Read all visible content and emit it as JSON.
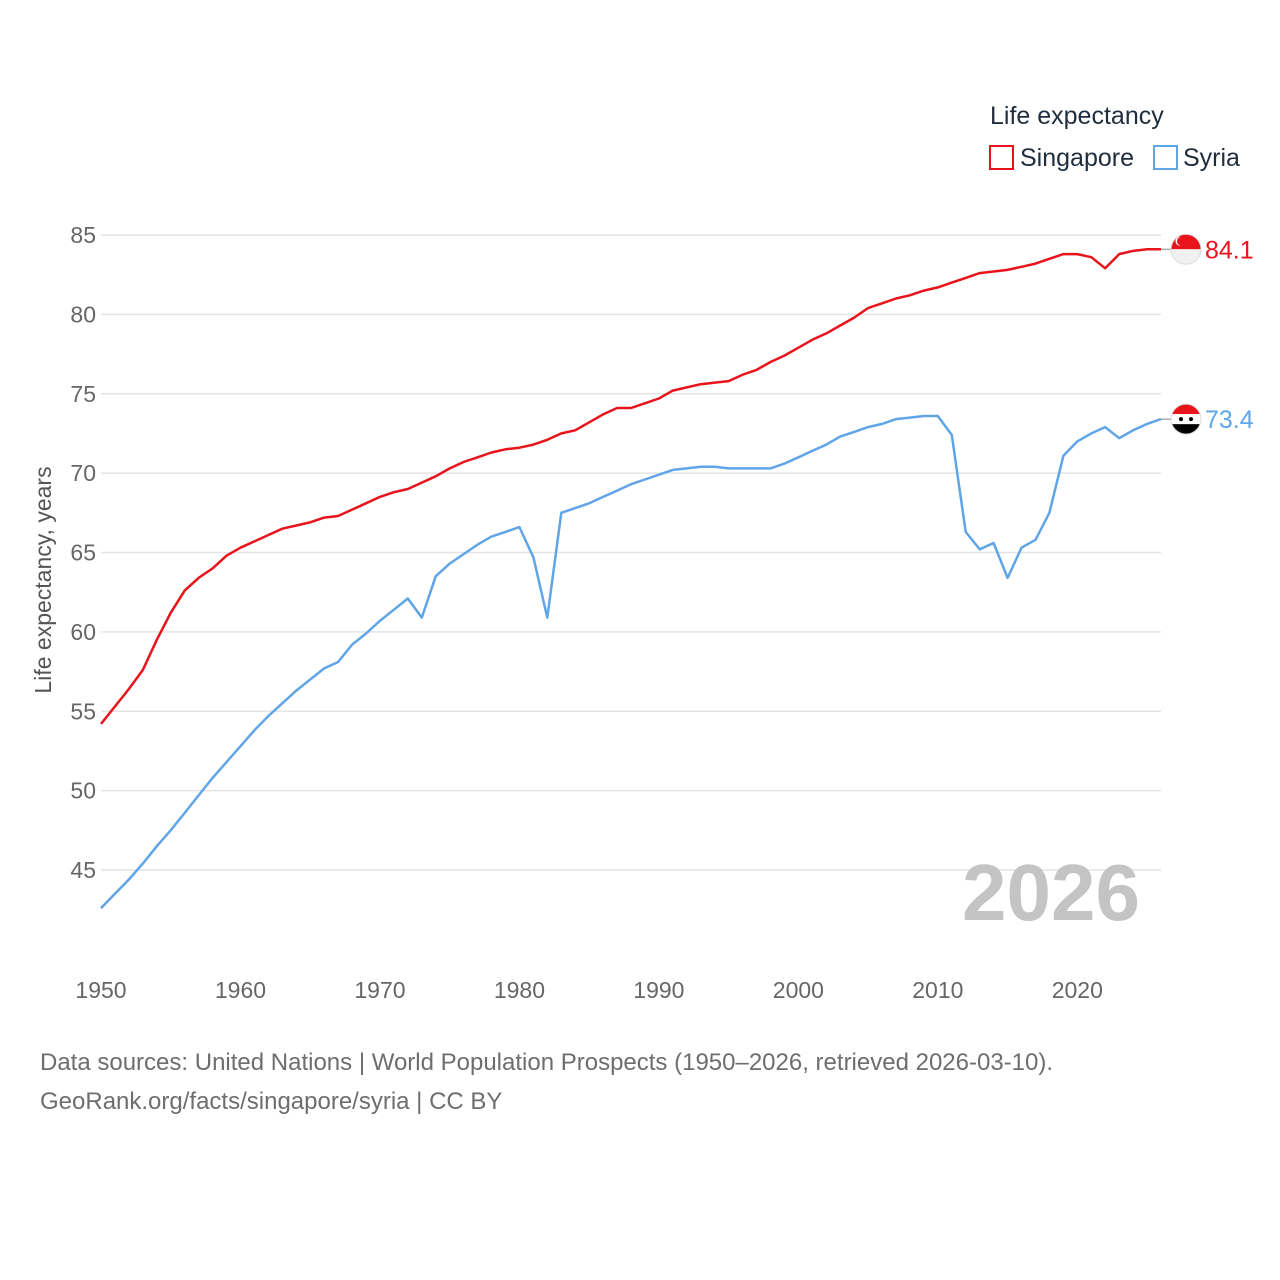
{
  "chart_data": {
    "type": "line",
    "title": "",
    "ylabel": "Life expectancy, years",
    "xlabel": "",
    "ylim": [
      41,
      87
    ],
    "xlim": [
      1950,
      2026
    ],
    "y_ticks": [
      45,
      50,
      55,
      60,
      65,
      70,
      75,
      80,
      85
    ],
    "x_ticks": [
      1950,
      1960,
      1970,
      1980,
      1990,
      2000,
      2010,
      2020
    ],
    "grid": true,
    "legend": {
      "title": "Life expectancy",
      "placement": "top-right",
      "entries": [
        "Singapore",
        "Syria"
      ]
    },
    "year_label": "2026",
    "series": [
      {
        "name": "Singapore",
        "color": "#e8131b",
        "end_label": "84.1",
        "flag": "singapore-flag",
        "x": [
          1950,
          1951,
          1952,
          1953,
          1954,
          1955,
          1956,
          1957,
          1958,
          1959,
          1960,
          1961,
          1962,
          1963,
          1964,
          1965,
          1966,
          1967,
          1968,
          1969,
          1970,
          1971,
          1972,
          1973,
          1974,
          1975,
          1976,
          1977,
          1978,
          1979,
          1980,
          1981,
          1982,
          1983,
          1984,
          1985,
          1986,
          1987,
          1988,
          1989,
          1990,
          1991,
          1992,
          1993,
          1994,
          1995,
          1996,
          1997,
          1998,
          1999,
          2000,
          2001,
          2002,
          2003,
          2004,
          2005,
          2006,
          2007,
          2008,
          2009,
          2010,
          2011,
          2012,
          2013,
          2014,
          2015,
          2016,
          2017,
          2018,
          2019,
          2020,
          2021,
          2022,
          2023,
          2024,
          2025,
          2026
        ],
        "values": [
          54.2,
          55.3,
          56.4,
          57.6,
          59.5,
          61.2,
          62.6,
          63.4,
          64.0,
          64.8,
          65.3,
          65.7,
          66.1,
          66.5,
          66.7,
          66.9,
          67.2,
          67.3,
          67.7,
          68.1,
          68.5,
          68.8,
          69.0,
          69.4,
          69.8,
          70.3,
          70.7,
          71.0,
          71.3,
          71.5,
          71.6,
          71.8,
          72.1,
          72.5,
          72.7,
          73.2,
          73.7,
          74.1,
          74.1,
          74.4,
          74.7,
          75.2,
          75.4,
          75.6,
          75.7,
          75.8,
          76.2,
          76.5,
          77.0,
          77.4,
          77.9,
          78.4,
          78.8,
          79.3,
          79.8,
          80.4,
          80.7,
          81.0,
          81.2,
          81.5,
          81.7,
          82.0,
          82.3,
          82.6,
          82.7,
          82.8,
          83.0,
          83.2,
          83.5,
          83.8,
          83.8,
          83.6,
          82.9,
          83.8,
          84.0,
          84.1,
          84.1
        ]
      },
      {
        "name": "Syria",
        "color": "#5fa5e8",
        "end_label": "73.4",
        "flag": "syria-flag",
        "x": [
          1950,
          1951,
          1952,
          1953,
          1954,
          1955,
          1956,
          1957,
          1958,
          1959,
          1960,
          1961,
          1962,
          1963,
          1964,
          1965,
          1966,
          1967,
          1968,
          1969,
          1970,
          1971,
          1972,
          1973,
          1974,
          1975,
          1976,
          1977,
          1978,
          1979,
          1980,
          1981,
          1982,
          1983,
          1984,
          1985,
          1986,
          1987,
          1988,
          1989,
          1990,
          1991,
          1992,
          1993,
          1994,
          1995,
          1996,
          1997,
          1998,
          1999,
          2000,
          2001,
          2002,
          2003,
          2004,
          2005,
          2006,
          2007,
          2008,
          2009,
          2010,
          2011,
          2012,
          2013,
          2014,
          2015,
          2016,
          2017,
          2018,
          2019,
          2020,
          2021,
          2022,
          2023,
          2024,
          2025,
          2026
        ],
        "values": [
          42.6,
          43.5,
          44.4,
          45.4,
          46.5,
          47.5,
          48.6,
          49.7,
          50.8,
          51.8,
          52.8,
          53.8,
          54.7,
          55.5,
          56.3,
          57.0,
          57.7,
          58.1,
          59.2,
          59.9,
          60.7,
          61.4,
          62.1,
          60.9,
          63.5,
          64.3,
          64.9,
          65.5,
          66.0,
          66.3,
          66.6,
          64.7,
          60.9,
          67.5,
          67.8,
          68.1,
          68.5,
          68.9,
          69.3,
          69.6,
          69.9,
          70.2,
          70.3,
          70.4,
          70.4,
          70.3,
          70.3,
          70.3,
          70.3,
          70.6,
          71.0,
          71.4,
          71.8,
          72.3,
          72.6,
          72.9,
          73.1,
          73.4,
          73.5,
          73.6,
          73.6,
          72.4,
          66.3,
          65.2,
          65.6,
          63.4,
          65.3,
          65.8,
          67.5,
          71.1,
          72.0,
          72.5,
          72.9,
          72.2,
          72.7,
          73.1,
          73.4
        ]
      }
    ]
  },
  "footer": {
    "sources": "Data sources: United Nations | World Population Prospects (1950–2026, retrieved 2026-03-10).",
    "credit": "GeoRank.org/facts/singapore/syria | CC BY"
  }
}
